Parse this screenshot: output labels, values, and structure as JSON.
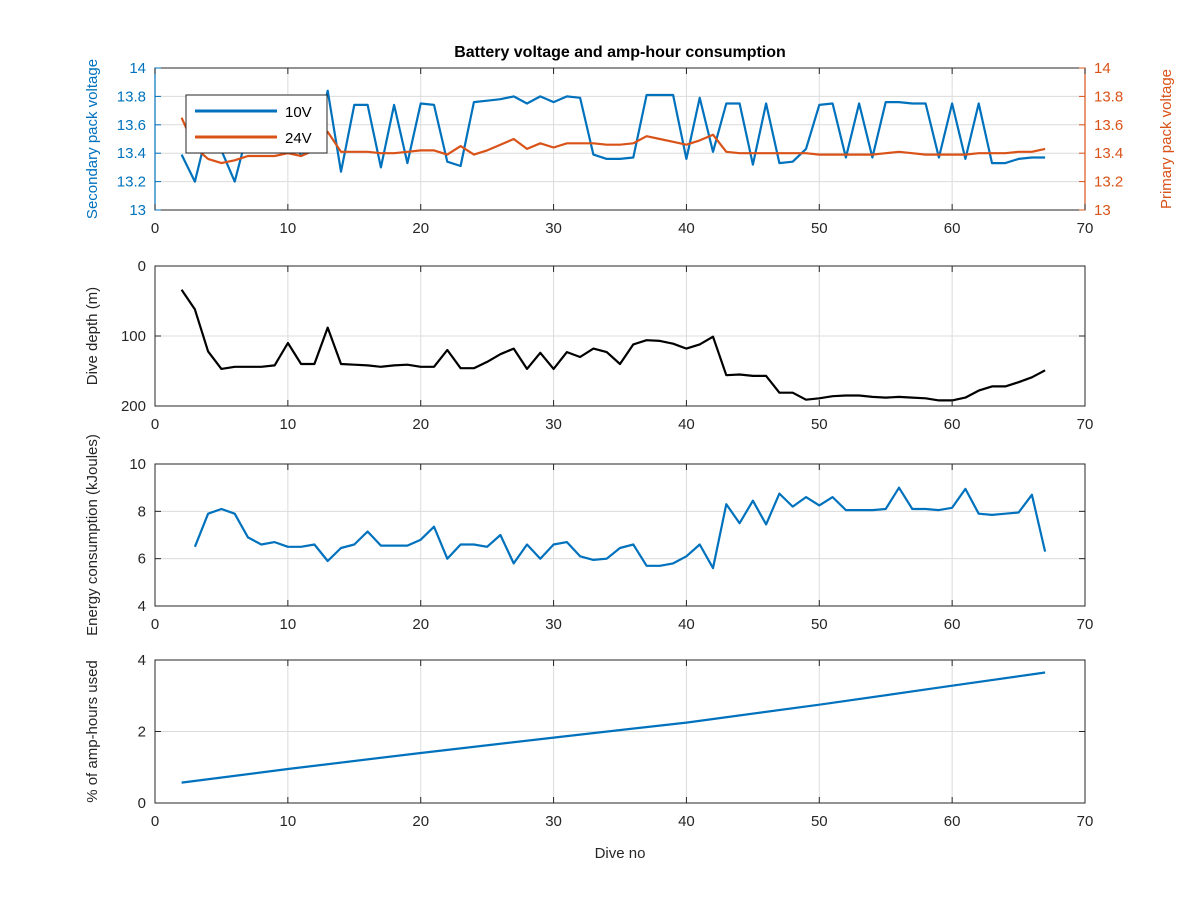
{
  "figure": {
    "title": "Battery voltage and amp-hour consumption",
    "shared_xlabel": "Dive no"
  },
  "colors": {
    "series_10v": "#0072bd",
    "series_24v": "#d95319",
    "black": "#000000",
    "grid": "#dcdcdc",
    "axis": "#262626"
  },
  "chart_data": [
    {
      "type": "line",
      "title": "Battery voltage and amp-hour consumption",
      "xlabel": "",
      "ylabel": "Secondary pack voltage",
      "ylabel_right": "Primary pack voltage",
      "xlim": [
        0,
        70
      ],
      "ylim": [
        13,
        14
      ],
      "ylim_right": [
        13,
        14
      ],
      "xticks": [
        0,
        10,
        20,
        30,
        40,
        50,
        60,
        70
      ],
      "yticks": [
        13,
        13.2,
        13.4,
        13.6,
        13.8,
        14
      ],
      "yticks_right": [
        13,
        13.2,
        13.4,
        13.6,
        13.8,
        14
      ],
      "grid": true,
      "legend_position": "top-left",
      "series": [
        {
          "name": "10V",
          "axis": "left",
          "x": [
            2,
            3,
            4,
            5,
            6,
            7,
            8,
            9,
            10,
            11,
            12,
            13,
            14,
            15,
            16,
            17,
            18,
            19,
            20,
            21,
            22,
            23,
            24,
            25,
            26,
            27,
            28,
            29,
            30,
            31,
            32,
            33,
            34,
            35,
            36,
            37,
            38,
            39,
            40,
            41,
            42,
            43,
            44,
            45,
            46,
            47,
            48,
            49,
            50,
            51,
            52,
            53,
            54,
            55,
            56,
            57,
            58,
            59,
            60,
            61,
            62,
            63,
            64,
            65,
            66,
            67
          ],
          "y": [
            13.39,
            13.2,
            13.58,
            13.42,
            13.2,
            13.56,
            13.62,
            13.6,
            13.6,
            13.38,
            13.45,
            13.84,
            13.27,
            13.74,
            13.74,
            13.3,
            13.74,
            13.33,
            13.75,
            13.74,
            13.34,
            13.31,
            13.76,
            13.77,
            13.78,
            13.8,
            13.75,
            13.8,
            13.76,
            13.8,
            13.79,
            13.39,
            13.36,
            13.36,
            13.37,
            13.81,
            13.81,
            13.81,
            13.36,
            13.79,
            13.41,
            13.75,
            13.75,
            13.32,
            13.75,
            13.33,
            13.34,
            13.43,
            13.74,
            13.75,
            13.37,
            13.75,
            13.37,
            13.76,
            13.76,
            13.75,
            13.75,
            13.37,
            13.75,
            13.36,
            13.75,
            13.33,
            13.33,
            13.36,
            13.37,
            13.37
          ]
        },
        {
          "name": "24V",
          "axis": "right",
          "x": [
            2,
            3,
            4,
            5,
            6,
            7,
            8,
            9,
            10,
            11,
            12,
            13,
            14,
            15,
            16,
            17,
            18,
            19,
            20,
            21,
            22,
            23,
            24,
            25,
            26,
            27,
            28,
            29,
            30,
            31,
            32,
            33,
            34,
            35,
            36,
            37,
            38,
            39,
            40,
            41,
            42,
            43,
            44,
            45,
            46,
            47,
            48,
            49,
            50,
            51,
            52,
            53,
            54,
            55,
            56,
            57,
            58,
            59,
            60,
            61,
            62,
            63,
            64,
            65,
            66,
            67
          ],
          "y": [
            13.65,
            13.44,
            13.36,
            13.33,
            13.35,
            13.38,
            13.38,
            13.38,
            13.4,
            13.38,
            13.42,
            13.55,
            13.41,
            13.41,
            13.41,
            13.4,
            13.4,
            13.41,
            13.42,
            13.42,
            13.39,
            13.45,
            13.39,
            13.42,
            13.46,
            13.5,
            13.43,
            13.47,
            13.44,
            13.47,
            13.47,
            13.47,
            13.46,
            13.46,
            13.47,
            13.52,
            13.5,
            13.48,
            13.46,
            13.49,
            13.53,
            13.41,
            13.4,
            13.4,
            13.4,
            13.4,
            13.4,
            13.4,
            13.39,
            13.39,
            13.39,
            13.39,
            13.39,
            13.4,
            13.41,
            13.4,
            13.39,
            13.39,
            13.39,
            13.39,
            13.4,
            13.4,
            13.4,
            13.41,
            13.41,
            13.43
          ]
        }
      ]
    },
    {
      "type": "line",
      "title": "",
      "xlabel": "",
      "ylabel": "Dive depth (m)",
      "xlim": [
        0,
        70
      ],
      "ylim": [
        200,
        0
      ],
      "y_reversed": true,
      "xticks": [
        0,
        10,
        20,
        30,
        40,
        50,
        60,
        70
      ],
      "yticks": [
        0,
        100,
        200
      ],
      "grid": true,
      "series": [
        {
          "color": "black",
          "x": [
            2,
            3,
            4,
            5,
            6,
            7,
            8,
            9,
            10,
            11,
            12,
            13,
            14,
            15,
            16,
            17,
            18,
            19,
            20,
            21,
            22,
            23,
            24,
            25,
            26,
            27,
            28,
            29,
            30,
            31,
            32,
            33,
            34,
            35,
            36,
            37,
            38,
            39,
            40,
            41,
            42,
            43,
            44,
            45,
            46,
            47,
            48,
            49,
            50,
            51,
            52,
            53,
            54,
            55,
            56,
            57,
            58,
            59,
            60,
            61,
            62,
            63,
            64,
            65,
            66,
            67
          ],
          "y": [
            34,
            62,
            122,
            147,
            144,
            144,
            144,
            142,
            110,
            140,
            140,
            88,
            140,
            141,
            142,
            144,
            142,
            141,
            144,
            144,
            120,
            146,
            146,
            137,
            126,
            118,
            147,
            124,
            147,
            123,
            130,
            118,
            123,
            140,
            112,
            106,
            107,
            111,
            118,
            112,
            101,
            156,
            155,
            157,
            157,
            181,
            181,
            191,
            189,
            186,
            185,
            185,
            187,
            188,
            187,
            188,
            189,
            192,
            192,
            188,
            178,
            172,
            172,
            166,
            159,
            149
          ]
        }
      ]
    },
    {
      "type": "line",
      "title": "",
      "xlabel": "",
      "ylabel": "Energy consumption (kJoules)",
      "xlim": [
        0,
        70
      ],
      "ylim": [
        4,
        10
      ],
      "xticks": [
        0,
        10,
        20,
        30,
        40,
        50,
        60,
        70
      ],
      "yticks": [
        4,
        6,
        8,
        10
      ],
      "grid": true,
      "series": [
        {
          "x": [
            3,
            4,
            5,
            6,
            7,
            8,
            9,
            10,
            11,
            12,
            13,
            14,
            15,
            16,
            17,
            18,
            19,
            20,
            21,
            22,
            23,
            24,
            25,
            26,
            27,
            28,
            29,
            30,
            31,
            32,
            33,
            34,
            35,
            36,
            37,
            38,
            39,
            40,
            41,
            42,
            43,
            44,
            45,
            46,
            47,
            48,
            49,
            50,
            51,
            52,
            53,
            54,
            55,
            56,
            57,
            58,
            59,
            60,
            61,
            62,
            63,
            64,
            65,
            66,
            67
          ],
          "y": [
            6.5,
            7.9,
            8.1,
            7.9,
            6.9,
            6.6,
            6.7,
            6.5,
            6.5,
            6.6,
            5.9,
            6.45,
            6.6,
            7.15,
            6.55,
            6.55,
            6.55,
            6.8,
            7.35,
            6.0,
            6.6,
            6.6,
            6.5,
            7.0,
            5.8,
            6.6,
            6.0,
            6.6,
            6.7,
            6.1,
            5.95,
            6.0,
            6.45,
            6.6,
            5.7,
            5.7,
            5.8,
            6.1,
            6.6,
            5.6,
            8.3,
            7.5,
            8.45,
            7.45,
            8.75,
            8.2,
            8.6,
            8.25,
            8.6,
            8.05,
            8.05,
            8.05,
            8.1,
            9.0,
            8.1,
            8.1,
            8.05,
            8.15,
            8.95,
            7.9,
            7.85,
            7.9,
            7.95,
            8.7,
            6.3
          ]
        }
      ]
    },
    {
      "type": "line",
      "title": "",
      "xlabel": "Dive no",
      "ylabel": "% of amp-hours used",
      "xlim": [
        0,
        70
      ],
      "ylim": [
        0,
        4
      ],
      "xticks": [
        0,
        10,
        20,
        30,
        40,
        50,
        60,
        70
      ],
      "yticks": [
        0,
        2,
        4
      ],
      "grid": true,
      "series": [
        {
          "x": [
            2,
            10,
            20,
            30,
            40,
            50,
            60,
            67
          ],
          "y": [
            0.57,
            0.95,
            1.4,
            1.83,
            2.25,
            2.75,
            3.28,
            3.65
          ]
        }
      ]
    }
  ]
}
